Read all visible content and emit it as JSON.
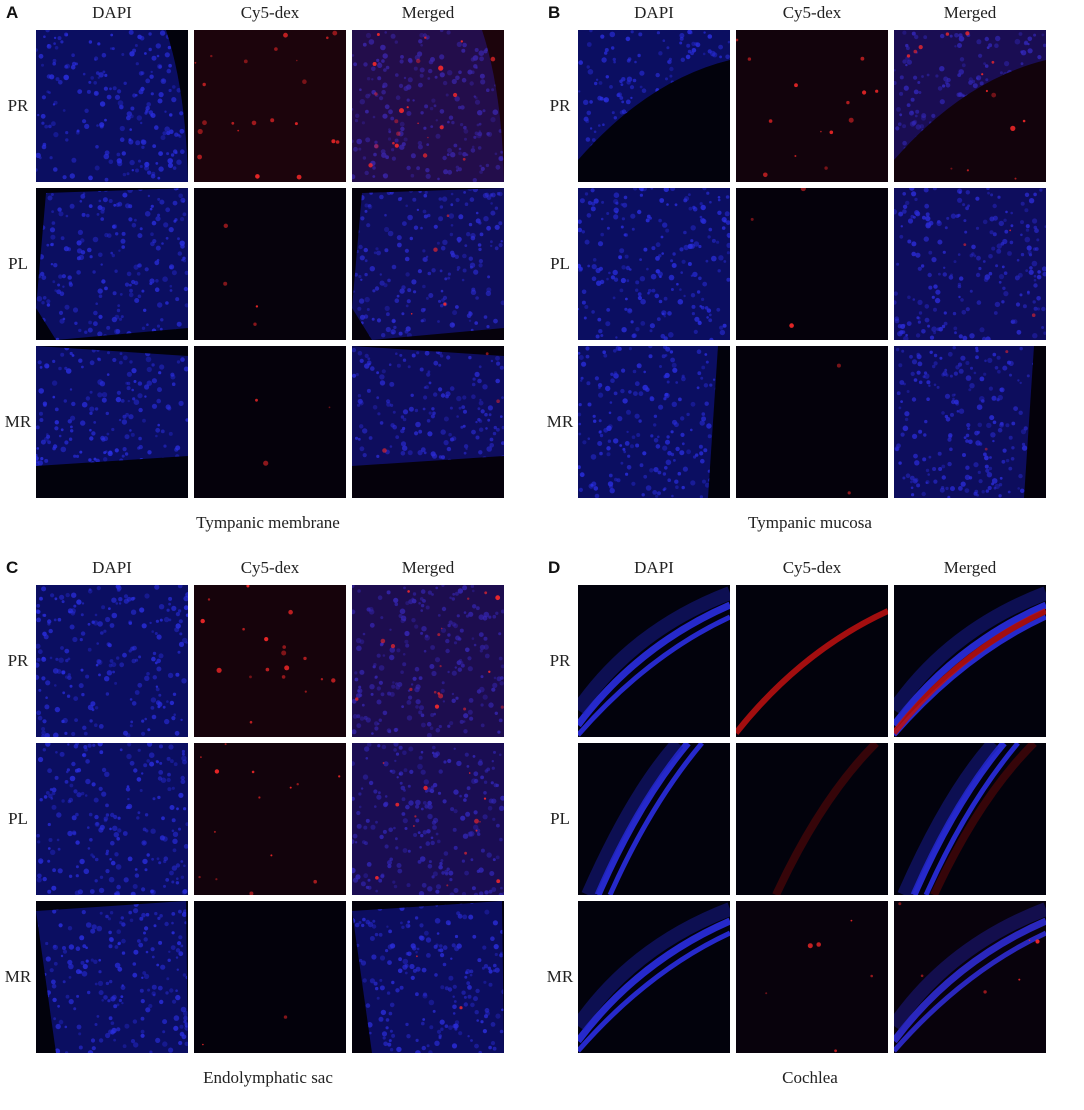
{
  "panels": [
    {
      "letter": "A",
      "columns": [
        "DAPI",
        "Cy5-dex",
        "Merged"
      ],
      "rows": [
        "PR",
        "PL",
        "MR"
      ],
      "caption": "Tympanic membrane",
      "pattern": "membrane",
      "red_intensity": [
        0.55,
        0.1,
        0.08
      ]
    },
    {
      "letter": "B",
      "columns": [
        "DAPI",
        "Cy5-dex",
        "Merged"
      ],
      "rows": [
        "PR",
        "PL",
        "MR"
      ],
      "caption": "Tympanic mucosa",
      "pattern": "mucosa",
      "red_intensity": [
        0.35,
        0.08,
        0.06
      ]
    },
    {
      "letter": "C",
      "columns": [
        "DAPI",
        "Cy5-dex",
        "Merged"
      ],
      "rows": [
        "PR",
        "PL",
        "MR"
      ],
      "caption": "Endolymphatic sac",
      "pattern": "sac",
      "red_intensity": [
        0.45,
        0.35,
        0.05
      ]
    },
    {
      "letter": "D",
      "columns": [
        "DAPI",
        "Cy5-dex",
        "Merged"
      ],
      "rows": [
        "PR",
        "PL",
        "MR"
      ],
      "caption": "Cochlea",
      "pattern": "cochlea",
      "red_intensity": [
        0.85,
        0.25,
        0.15
      ]
    }
  ],
  "colors": {
    "dapi": "#2a2ee0",
    "cy5": "#c01010",
    "background": "#000008"
  }
}
